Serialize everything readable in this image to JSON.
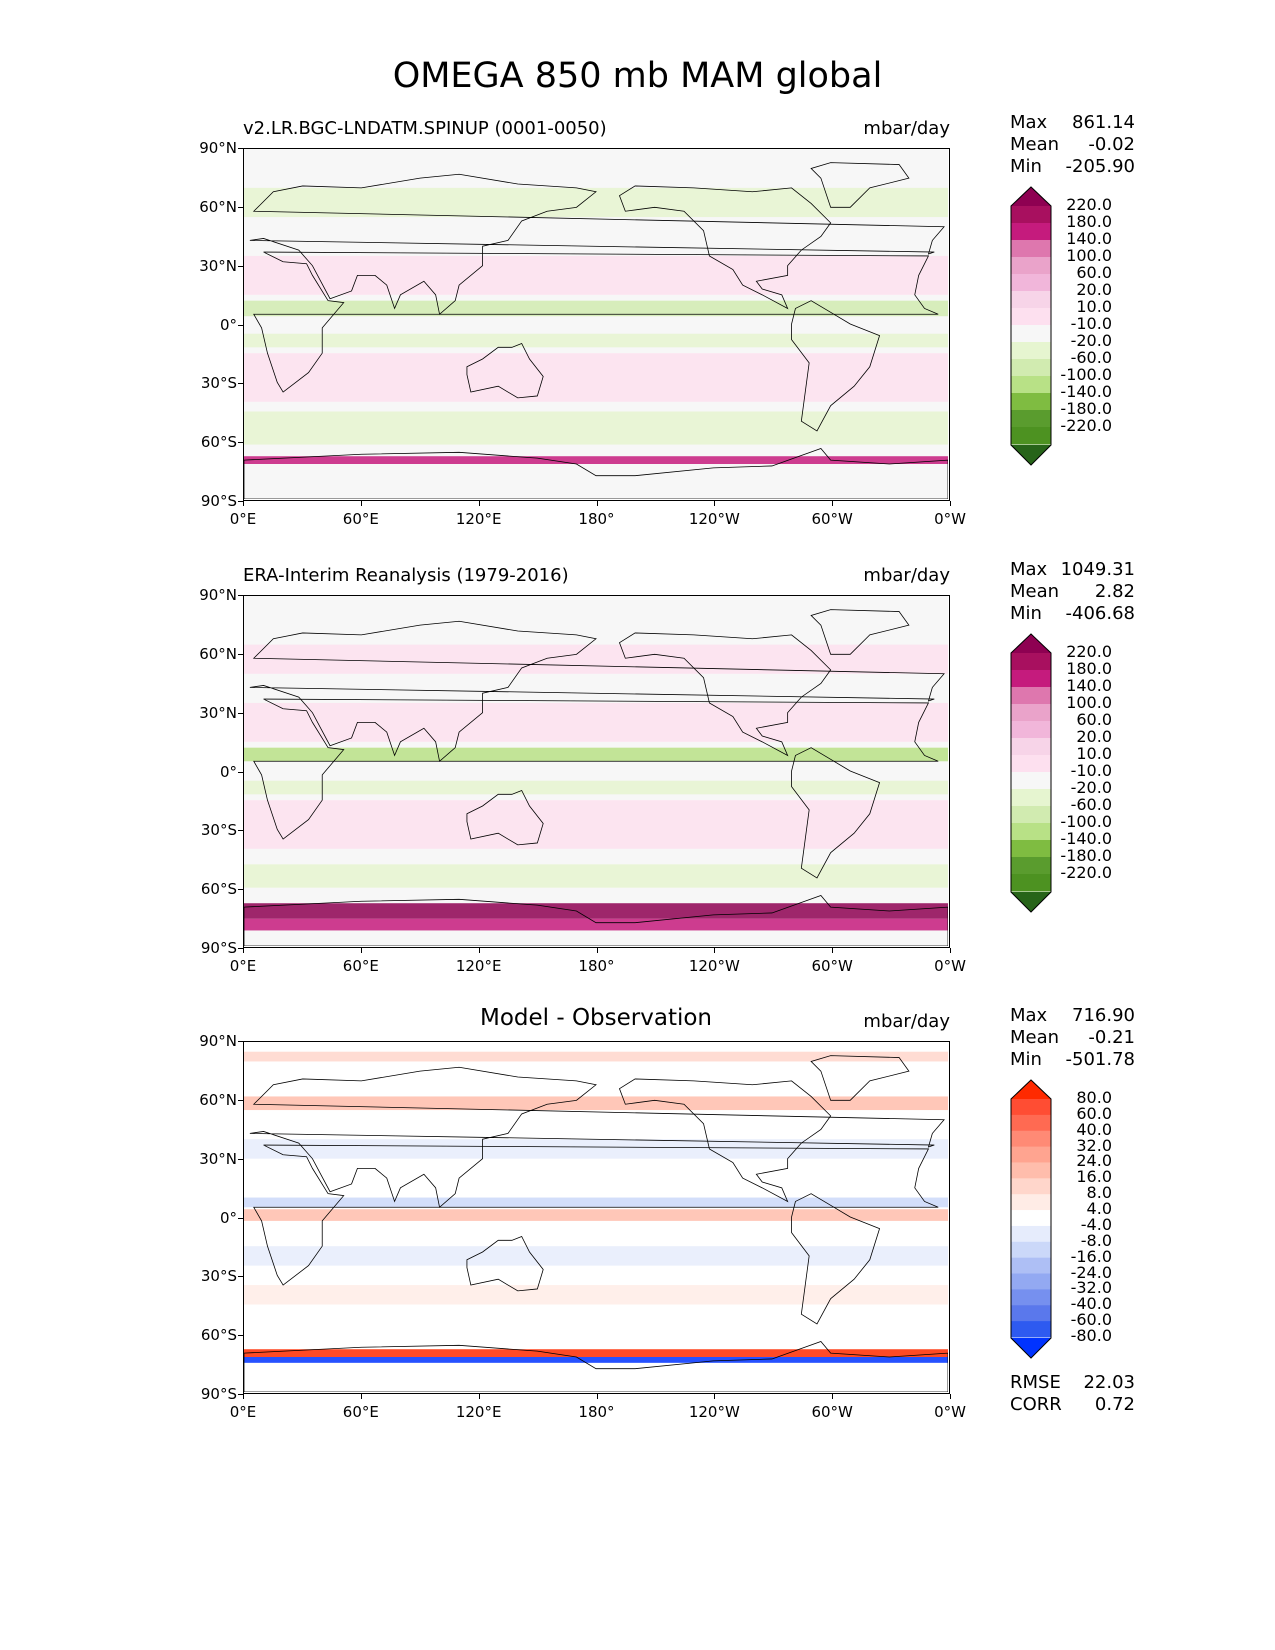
{
  "figure_title": "OMEGA 850 mb MAM global",
  "chart_data": [
    {
      "type": "heatmap",
      "title": "v2.LR.BGC-LNDATM.SPINUP (0001-0050)",
      "units": "mbar/day",
      "stats": {
        "max_label": "Max",
        "max": "861.14",
        "mean_label": "Mean",
        "mean": "-0.02",
        "min_label": "Min",
        "min": "-205.90"
      },
      "colorbar": {
        "levels": [
          "220.0",
          "180.0",
          "140.0",
          "100.0",
          "60.0",
          "20.0",
          "10.0",
          "-10.0",
          "-20.0",
          "-60.0",
          "-100.0",
          "-140.0",
          "-180.0",
          "-220.0"
        ],
        "colors": [
          "#8e0152",
          "#a8105f",
          "#c51b7d",
          "#de77ae",
          "#eaa3ca",
          "#f1b6da",
          "#f7d4e8",
          "#fde0ef",
          "#f7f7f7",
          "#e6f5d0",
          "#d1ebb0",
          "#b8e186",
          "#7fbc41",
          "#5a9c2e",
          "#4d9221",
          "#276419"
        ]
      },
      "lat_ticks": [
        "90°N",
        "60°N",
        "30°N",
        "0°",
        "30°S",
        "60°S",
        "90°S"
      ],
      "lon_ticks": [
        "0°E",
        "60°E",
        "120°E",
        "180°",
        "120°W",
        "60°W",
        "0°W"
      ]
    },
    {
      "type": "heatmap",
      "title": "ERA-Interim Reanalysis (1979-2016)",
      "units": "mbar/day",
      "stats": {
        "max_label": "Max",
        "max": "1049.31",
        "mean_label": "Mean",
        "mean": "2.82",
        "min_label": "Min",
        "min": "-406.68"
      },
      "colorbar": {
        "levels": [
          "220.0",
          "180.0",
          "140.0",
          "100.0",
          "60.0",
          "20.0",
          "10.0",
          "-10.0",
          "-20.0",
          "-60.0",
          "-100.0",
          "-140.0",
          "-180.0",
          "-220.0"
        ],
        "colors": [
          "#8e0152",
          "#a8105f",
          "#c51b7d",
          "#de77ae",
          "#eaa3ca",
          "#f1b6da",
          "#f7d4e8",
          "#fde0ef",
          "#f7f7f7",
          "#e6f5d0",
          "#d1ebb0",
          "#b8e186",
          "#7fbc41",
          "#5a9c2e",
          "#4d9221",
          "#276419"
        ]
      },
      "lat_ticks": [
        "90°N",
        "60°N",
        "30°N",
        "0°",
        "30°S",
        "60°S",
        "90°S"
      ],
      "lon_ticks": [
        "0°E",
        "60°E",
        "120°E",
        "180°",
        "120°W",
        "60°W",
        "0°W"
      ]
    },
    {
      "type": "heatmap",
      "title": "Model - Observation",
      "units": "mbar/day",
      "stats": {
        "max_label": "Max",
        "max": "716.90",
        "mean_label": "Mean",
        "mean": "-0.21",
        "min_label": "Min",
        "min": "-501.78"
      },
      "metrics": {
        "rmse_label": "RMSE",
        "rmse": "22.03",
        "corr_label": "CORR",
        "corr": "0.72"
      },
      "colorbar": {
        "levels": [
          "80.0",
          "60.0",
          "40.0",
          "32.0",
          "24.0",
          "16.0",
          "8.0",
          "4.0",
          "-4.0",
          "-8.0",
          "-16.0",
          "-24.0",
          "-32.0",
          "-40.0",
          "-60.0",
          "-80.0"
        ],
        "colors": [
          "#ff2a00",
          "#ff4d33",
          "#ff6a52",
          "#ff8a75",
          "#ffa490",
          "#ffbdac",
          "#ffd6cb",
          "#ffece6",
          "#ffffff",
          "#e6ecfc",
          "#cbd8f9",
          "#aebff5",
          "#93a9f2",
          "#7690ef",
          "#5a78ec",
          "#2e5af0",
          "#0033ff"
        ]
      },
      "lat_ticks": [
        "90°N",
        "60°N",
        "30°N",
        "0°",
        "30°S",
        "60°S",
        "90°S"
      ],
      "lon_ticks": [
        "0°E",
        "60°E",
        "120°E",
        "180°",
        "120°W",
        "60°W",
        "0°W"
      ]
    }
  ]
}
